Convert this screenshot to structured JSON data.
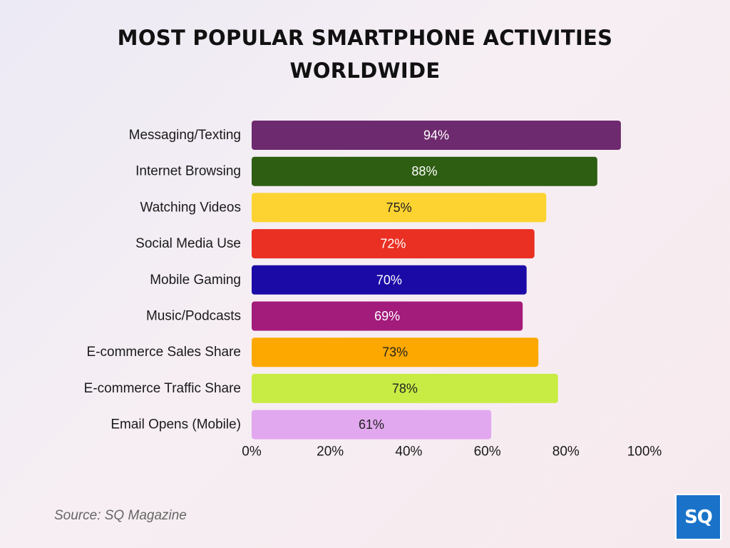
{
  "page": {
    "title_lines": [
      "MOST POPULAR SMARTPHONE ACTIVITIES",
      "WORLDWIDE"
    ],
    "source": "Source: SQ Magazine",
    "logo_text": "SQ"
  },
  "chart_data": {
    "type": "bar",
    "orientation": "horizontal",
    "title": "MOST POPULAR SMARTPHONE ACTIVITIES WORLDWIDE",
    "categories": [
      "Messaging/Texting",
      "Internet Browsing",
      "Watching Videos",
      "Social Media Use",
      "Mobile Gaming",
      "Music/Podcasts",
      "E-commerce Sales Share",
      "E-commerce Traffic Share",
      "Email Opens (Mobile)"
    ],
    "values": [
      94,
      88,
      75,
      72,
      70,
      69,
      73,
      78,
      61
    ],
    "value_labels": [
      "94%",
      "88%",
      "75%",
      "72%",
      "70%",
      "69%",
      "73%",
      "78%",
      "61%"
    ],
    "colors": [
      "#6e2a6e",
      "#2e5e12",
      "#fdd331",
      "#ea2f23",
      "#1c0aa6",
      "#a31b7b",
      "#fca800",
      "#c8ec44",
      "#e2a8ef"
    ],
    "label_colors": [
      "#ffffff",
      "#ffffff",
      "#222222",
      "#ffffff",
      "#ffffff",
      "#ffffff",
      "#222222",
      "#222222",
      "#222222"
    ],
    "xlim": [
      0,
      100
    ],
    "xticks": [
      0,
      20,
      40,
      60,
      80,
      100
    ],
    "xtick_labels": [
      "0%",
      "20%",
      "40%",
      "60%",
      "80%",
      "100%"
    ],
    "xlabel": "",
    "ylabel": "",
    "grid": false,
    "legend": "none"
  }
}
